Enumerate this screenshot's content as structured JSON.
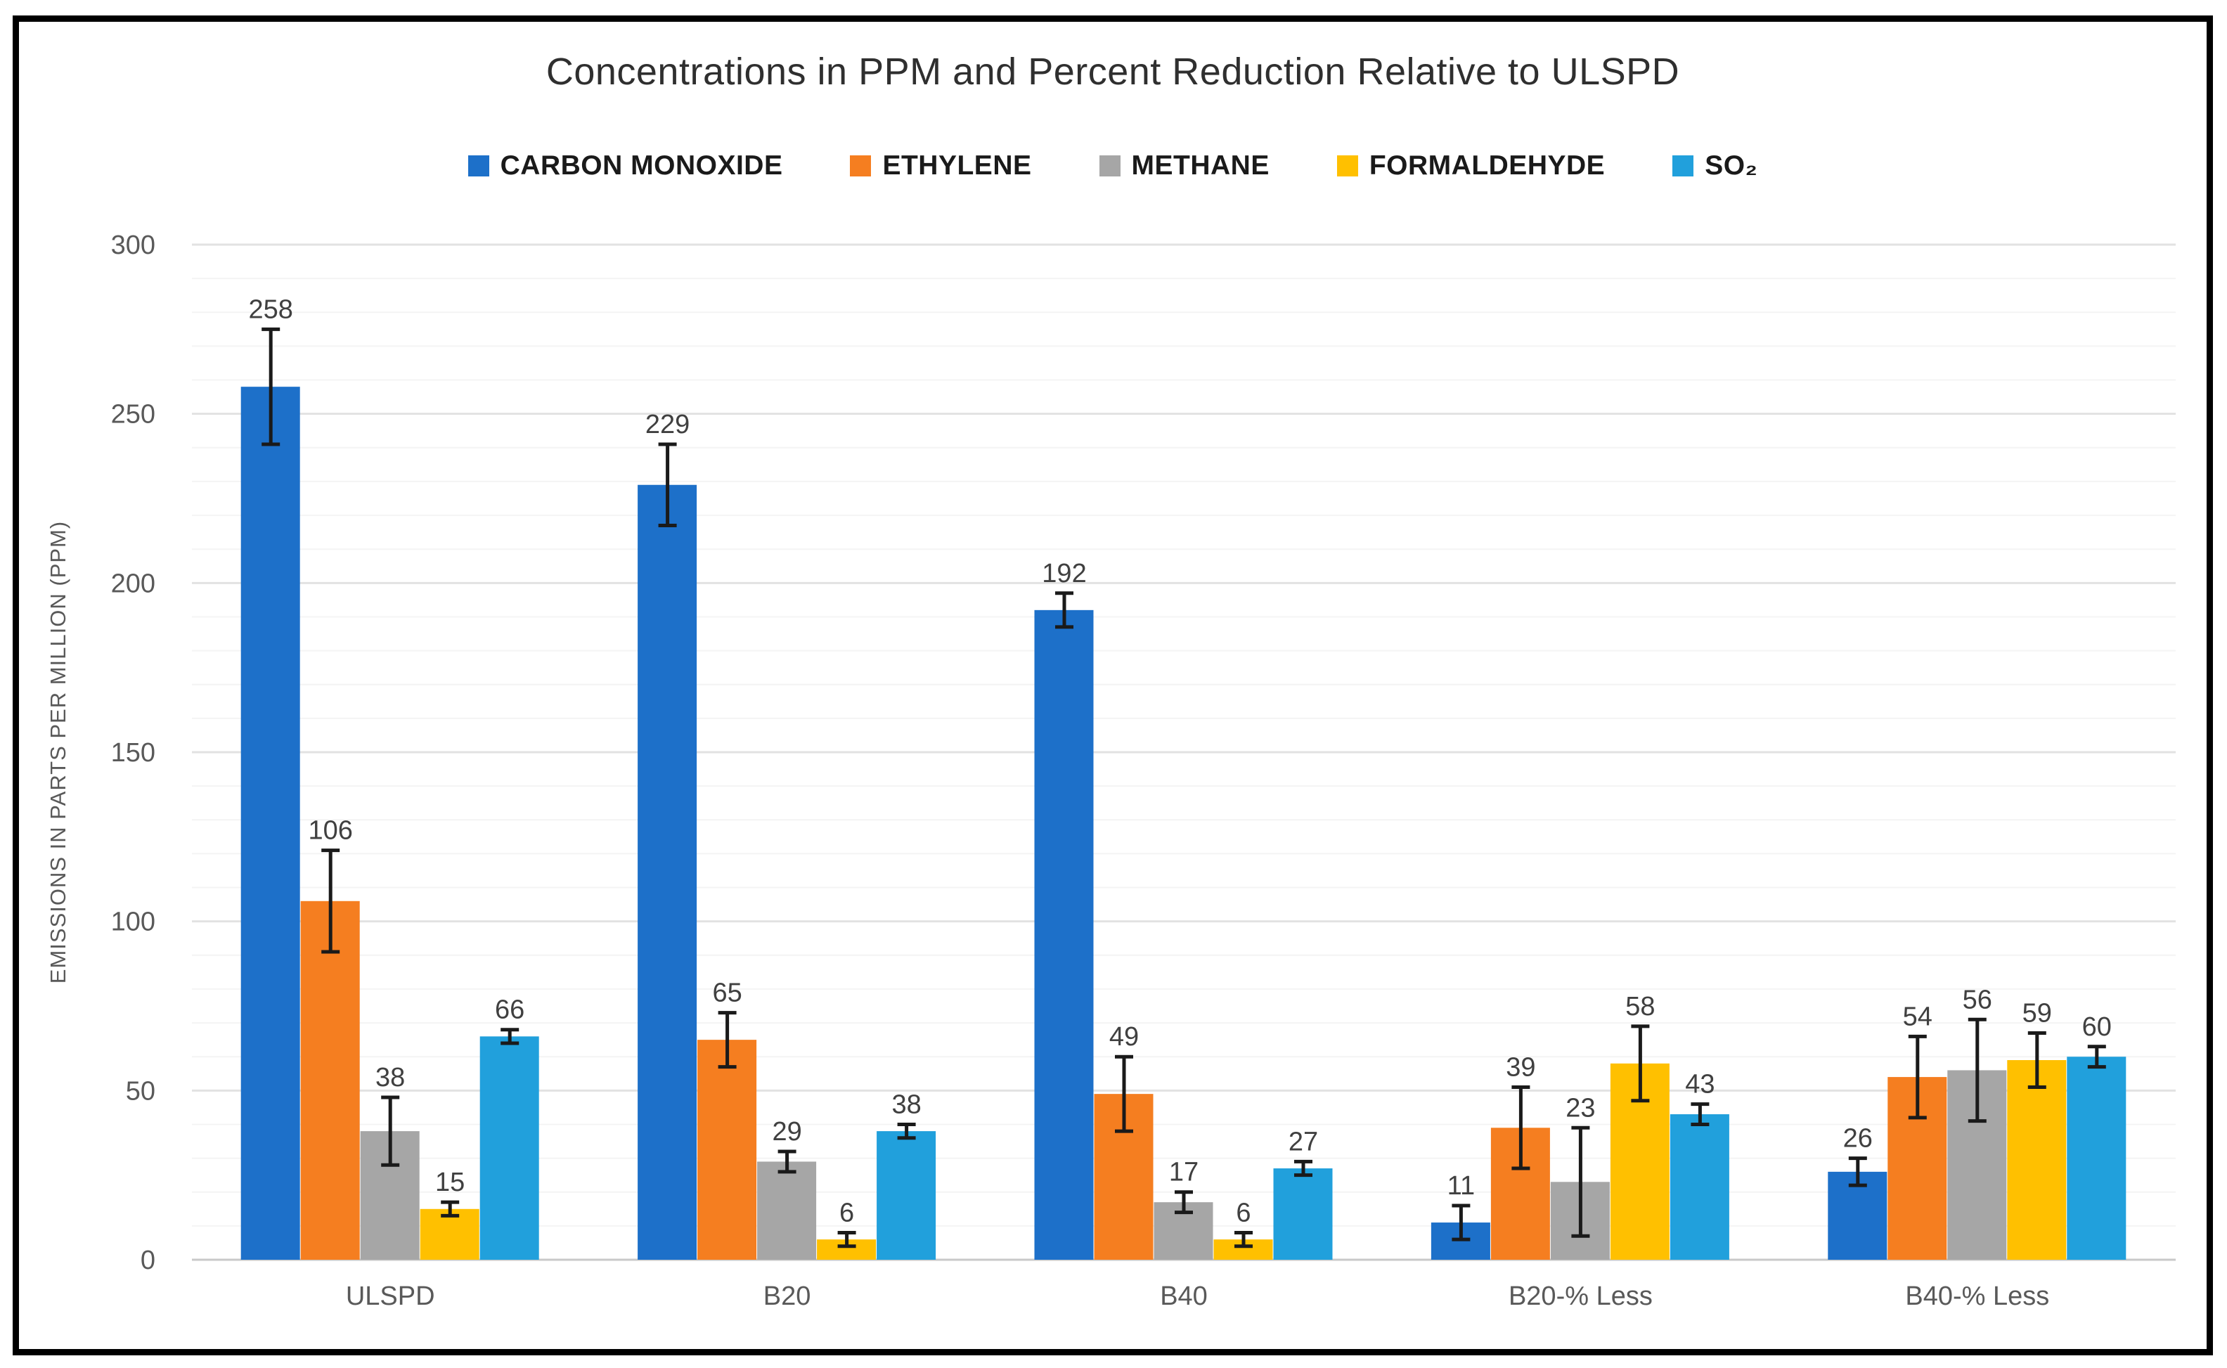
{
  "page": {
    "background": "#ffffff",
    "frame_border_color": "#000000"
  },
  "chart_data": {
    "type": "bar",
    "title": "Concentrations in PPM and Percent Reduction Relative to ULSPD",
    "xlabel": "",
    "ylabel": "EMISSIONS IN PARTS PER MILLION (PPM)",
    "ylim": [
      0,
      300
    ],
    "yticks": [
      0,
      50,
      100,
      150,
      200,
      250,
      300
    ],
    "grid": {
      "on": true,
      "minor_step": 10,
      "major_step": 50,
      "minor_color": "#f4f4f4",
      "major_color": "#e2e2e2",
      "baseline_color": "#c9c9c9"
    },
    "legend_position": "top-center",
    "error_bars": true,
    "categories": [
      "ULSPD",
      "B20",
      "B40",
      "B20-% Less",
      "B40-% Less"
    ],
    "series": [
      {
        "name": "CARBON MONOXIDE",
        "color": "#1d70c9",
        "values": [
          258,
          229,
          192,
          11,
          26
        ],
        "errors": [
          17,
          12,
          5,
          5,
          4
        ]
      },
      {
        "name": "ETHYLENE",
        "color": "#f57e20",
        "values": [
          106,
          65,
          49,
          39,
          54
        ],
        "errors": [
          15,
          8,
          11,
          12,
          12
        ]
      },
      {
        "name": "METHANE",
        "color": "#a6a6a6",
        "values": [
          38,
          29,
          17,
          23,
          56
        ],
        "errors": [
          10,
          3,
          3,
          16,
          15
        ]
      },
      {
        "name": "FORMALDEHYDE",
        "color": "#ffc000",
        "values": [
          15,
          6,
          6,
          58,
          59
        ],
        "errors": [
          2,
          2,
          2,
          11,
          8
        ]
      },
      {
        "name": "SO₂",
        "color": "#21a0dc",
        "values": [
          66,
          38,
          27,
          43,
          60
        ],
        "errors": [
          2,
          2,
          2,
          3,
          3
        ]
      }
    ],
    "data_labels": {
      "ULSPD": [
        258,
        106,
        38,
        15,
        66
      ],
      "B20": [
        229,
        65,
        29,
        6,
        38
      ],
      "B40": [
        192,
        49,
        17,
        6,
        27
      ],
      "B20-% Less": [
        11,
        39,
        23,
        58,
        43
      ],
      "B40-% Less": [
        26,
        54,
        56,
        59,
        60
      ]
    },
    "styles": {
      "title_color": "#2f2f2f",
      "tick_label_color": "#595959",
      "category_label_color": "#595959",
      "axis_title_color": "#595959",
      "value_label_color": "#404040",
      "error_bar_color": "#1a1a1a"
    }
  }
}
